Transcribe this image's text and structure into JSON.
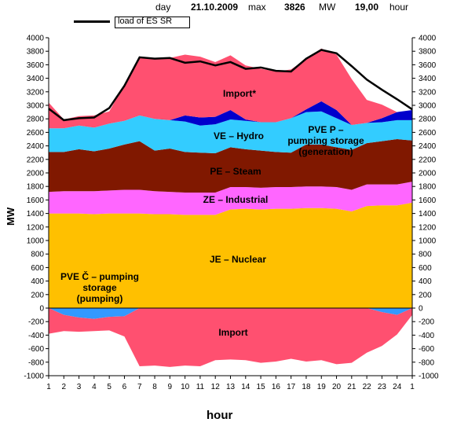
{
  "header": {
    "day_label": "day",
    "date": "21.10.2009",
    "max_label": "max",
    "max_value": "3826",
    "unit": "MW",
    "time_value": "19,00",
    "hour_label": "hour"
  },
  "legend": {
    "line_label": "load of ES SR"
  },
  "annotations": {
    "import_top": "Import*",
    "hydro": "VE – Hydro",
    "pvep_1": "PVE P –",
    "pvep_2": "pumping storage",
    "pvep_3": "(generation)",
    "steam": "PE – Steam",
    "industrial": "ZE – Industrial",
    "nuclear": "JE – Nuclear",
    "pvec_1": "PVE Č – pumping",
    "pvec_2": "storage",
    "pvec_3": "(pumping)",
    "import_bottom": "Import"
  },
  "chart_data": {
    "type": "area",
    "ylabel": "MW",
    "xlabel": "hour",
    "ylim": [
      -1000,
      4000
    ],
    "y_ticks": [
      -1000,
      -800,
      -600,
      -400,
      -200,
      0,
      200,
      400,
      600,
      800,
      1000,
      1200,
      1400,
      1600,
      1800,
      2000,
      2200,
      2400,
      2600,
      2800,
      3000,
      3200,
      3400,
      3600,
      3800,
      4000
    ],
    "x_tick_labels": [
      "1",
      "2",
      "3",
      "4",
      "5",
      "6",
      "7",
      "8",
      "9",
      "10",
      "11",
      "12",
      "13",
      "14",
      "15",
      "16",
      "17",
      "18",
      "19",
      "20",
      "21",
      "22",
      "23",
      "24",
      "1"
    ],
    "grid": false,
    "legend_position": "top-left",
    "colors": {
      "nuclear": "#ffc000",
      "industrial": "#ff66ff",
      "steam": "#801800",
      "hydro": "#33ccff",
      "pve_p": "#0000cc",
      "import": "#ff5070",
      "pumping": "#3399ff",
      "import_neg": "#ff5070",
      "load": "#000000"
    },
    "series": [
      {
        "name": "JE – Nuclear",
        "values": [
          1400,
          1400,
          1400,
          1390,
          1400,
          1400,
          1400,
          1390,
          1390,
          1380,
          1380,
          1380,
          1460,
          1470,
          1460,
          1470,
          1470,
          1480,
          1480,
          1470,
          1430,
          1510,
          1520,
          1520,
          1560
        ]
      },
      {
        "name": "ZE – Industrial",
        "values": [
          320,
          330,
          330,
          340,
          340,
          350,
          350,
          340,
          330,
          330,
          330,
          330,
          330,
          320,
          320,
          320,
          320,
          320,
          320,
          320,
          320,
          320,
          310,
          310,
          310
        ]
      },
      {
        "name": "PE – Steam",
        "values": [
          590,
          580,
          620,
          590,
          620,
          670,
          720,
          600,
          640,
          600,
          590,
          580,
          590,
          560,
          550,
          520,
          510,
          620,
          620,
          590,
          590,
          610,
          640,
          670,
          610
        ]
      },
      {
        "name": "VE – Hydro",
        "values": [
          350,
          350,
          350,
          350,
          370,
          350,
          380,
          470,
          420,
          450,
          400,
          430,
          410,
          420,
          420,
          440,
          510,
          480,
          490,
          430,
          370,
          300,
          280,
          280,
          300
        ]
      },
      {
        "name": "PVE P – pumping storage (generation)",
        "values": [
          0,
          0,
          0,
          0,
          0,
          0,
          0,
          0,
          0,
          90,
          120,
          110,
          140,
          20,
          0,
          0,
          0,
          40,
          150,
          120,
          0,
          0,
          60,
          120,
          150
        ]
      },
      {
        "name": "Import*",
        "values": [
          380,
          130,
          140,
          180,
          180,
          540,
          860,
          890,
          920,
          900,
          900,
          810,
          810,
          800,
          790,
          750,
          720,
          750,
          780,
          820,
          680,
          340,
          200,
          0,
          0
        ]
      },
      {
        "name": "PVE Č – pumping storage (pumping)",
        "values": [
          0,
          -100,
          -140,
          -160,
          -130,
          -120,
          0,
          0,
          0,
          0,
          0,
          0,
          0,
          0,
          0,
          0,
          0,
          0,
          0,
          0,
          0,
          0,
          -60,
          -100,
          0
        ]
      },
      {
        "name": "Import",
        "values": [
          -380,
          -240,
          -210,
          -180,
          -200,
          -300,
          -860,
          -850,
          -870,
          -850,
          -860,
          -770,
          -760,
          -770,
          -810,
          -790,
          -750,
          -790,
          -770,
          -830,
          -810,
          -660,
          -500,
          -290,
          -100
        ]
      },
      {
        "name": "load of ES SR",
        "values": [
          2950,
          2780,
          2810,
          2820,
          2960,
          3290,
          3710,
          3690,
          3700,
          3630,
          3650,
          3590,
          3640,
          3540,
          3560,
          3510,
          3500,
          3690,
          3820,
          3770,
          3580,
          3380,
          3230,
          3090,
          2940
        ]
      }
    ]
  }
}
